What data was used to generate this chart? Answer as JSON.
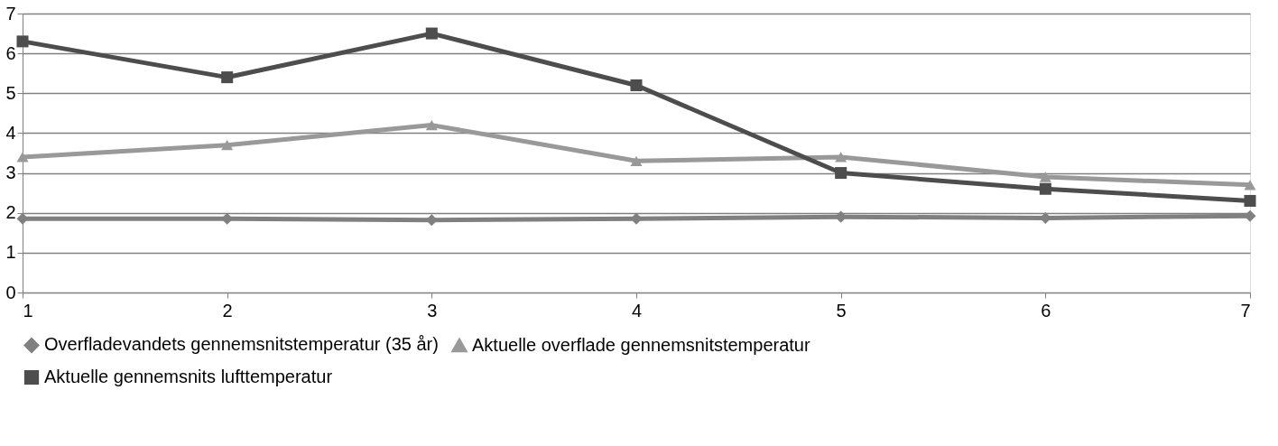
{
  "chart_data": {
    "type": "line",
    "x": [
      1,
      2,
      3,
      4,
      5,
      6,
      7
    ],
    "series": [
      {
        "name": "Overfladevandets gennemsnitstemperatur (35 år)",
        "color": "#808080",
        "marker": "diamond",
        "values": [
          1.85,
          1.85,
          1.82,
          1.85,
          1.9,
          1.87,
          1.92
        ]
      },
      {
        "name": "Aktuelle overflade gennemsnitstemperatur",
        "color": "#999999",
        "marker": "triangle",
        "values": [
          3.4,
          3.7,
          4.2,
          3.3,
          3.4,
          2.9,
          2.7
        ]
      },
      {
        "name": "Aktuelle gennemsnits lufttemperatur",
        "color": "#4d4d4d",
        "marker": "square",
        "values": [
          6.3,
          5.4,
          6.5,
          5.2,
          3.0,
          2.6,
          2.3
        ]
      }
    ],
    "xlim": [
      1,
      7
    ],
    "xticks": [
      1,
      2,
      3,
      4,
      5,
      6,
      7
    ],
    "ylim": [
      0,
      7
    ],
    "yticks": [
      0,
      1,
      2,
      3,
      4,
      5,
      6,
      7
    ],
    "grid": "y",
    "legend": "bottom",
    "line_style": "solid"
  }
}
